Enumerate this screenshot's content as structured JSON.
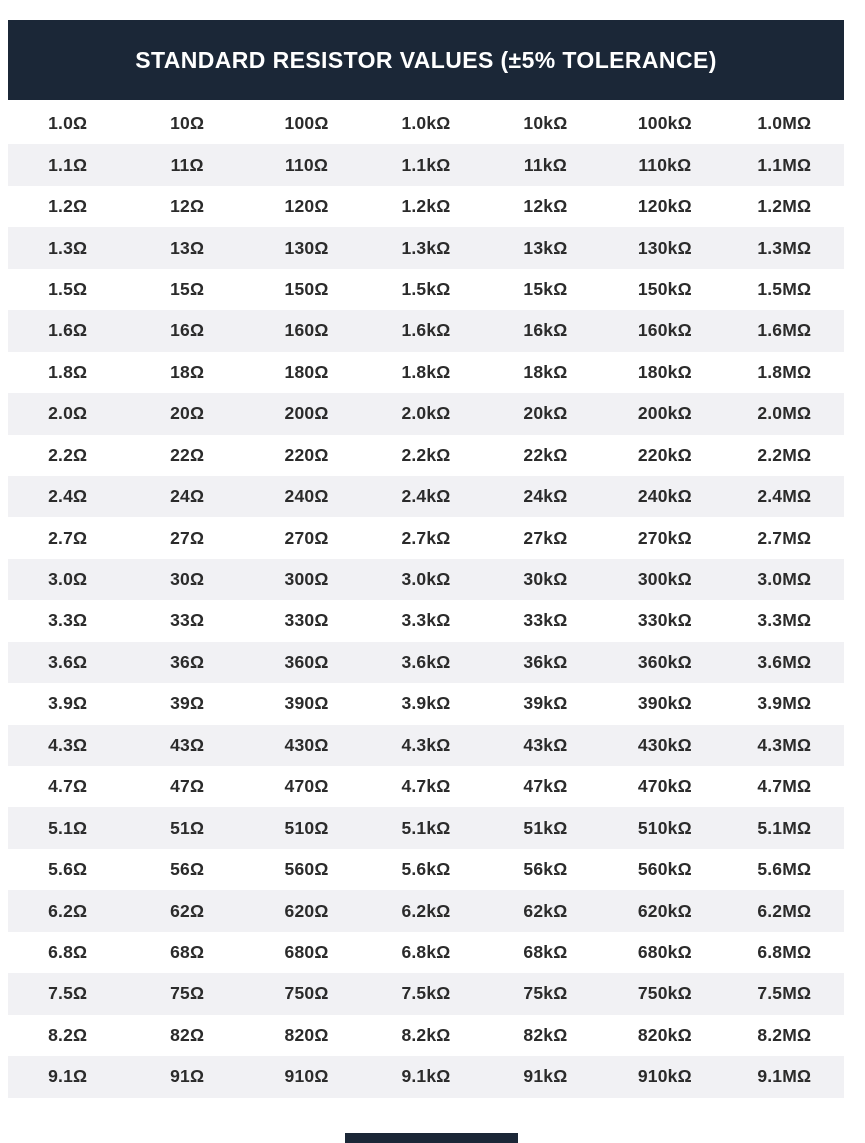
{
  "header": {
    "title": "STANDARD RESISTOR VALUES (±5% TOLERANCE)"
  },
  "colors": {
    "page_bg": "#ffffff",
    "header_bg": "#1b2737",
    "title_text": "#ffffff",
    "stripe": "#f1f1f4",
    "cell_text": "#2b2b2b"
  },
  "table": {
    "rows": [
      [
        "1.0Ω",
        "10Ω",
        "100Ω",
        "1.0kΩ",
        "10kΩ",
        "100kΩ",
        "1.0MΩ"
      ],
      [
        "1.1Ω",
        "11Ω",
        "110Ω",
        "1.1kΩ",
        "11kΩ",
        "110kΩ",
        "1.1MΩ"
      ],
      [
        "1.2Ω",
        "12Ω",
        "120Ω",
        "1.2kΩ",
        "12kΩ",
        "120kΩ",
        "1.2MΩ"
      ],
      [
        "1.3Ω",
        "13Ω",
        "130Ω",
        "1.3kΩ",
        "13kΩ",
        "130kΩ",
        "1.3MΩ"
      ],
      [
        "1.5Ω",
        "15Ω",
        "150Ω",
        "1.5kΩ",
        "15kΩ",
        "150kΩ",
        "1.5MΩ"
      ],
      [
        "1.6Ω",
        "16Ω",
        "160Ω",
        "1.6kΩ",
        "16kΩ",
        "160kΩ",
        "1.6MΩ"
      ],
      [
        "1.8Ω",
        "18Ω",
        "180Ω",
        "1.8kΩ",
        "18kΩ",
        "180kΩ",
        "1.8MΩ"
      ],
      [
        "2.0Ω",
        "20Ω",
        "200Ω",
        "2.0kΩ",
        "20kΩ",
        "200kΩ",
        "2.0MΩ"
      ],
      [
        "2.2Ω",
        "22Ω",
        "220Ω",
        "2.2kΩ",
        "22kΩ",
        "220kΩ",
        "2.2MΩ"
      ],
      [
        "2.4Ω",
        "24Ω",
        "240Ω",
        "2.4kΩ",
        "24kΩ",
        "240kΩ",
        "2.4MΩ"
      ],
      [
        "2.7Ω",
        "27Ω",
        "270Ω",
        "2.7kΩ",
        "27kΩ",
        "270kΩ",
        "2.7MΩ"
      ],
      [
        "3.0Ω",
        "30Ω",
        "300Ω",
        "3.0kΩ",
        "30kΩ",
        "300kΩ",
        "3.0MΩ"
      ],
      [
        "3.3Ω",
        "33Ω",
        "330Ω",
        "3.3kΩ",
        "33kΩ",
        "330kΩ",
        "3.3MΩ"
      ],
      [
        "3.6Ω",
        "36Ω",
        "360Ω",
        "3.6kΩ",
        "36kΩ",
        "360kΩ",
        "3.6MΩ"
      ],
      [
        "3.9Ω",
        "39Ω",
        "390Ω",
        "3.9kΩ",
        "39kΩ",
        "390kΩ",
        "3.9MΩ"
      ],
      [
        "4.3Ω",
        "43Ω",
        "430Ω",
        "4.3kΩ",
        "43kΩ",
        "430kΩ",
        "4.3MΩ"
      ],
      [
        "4.7Ω",
        "47Ω",
        "470Ω",
        "4.7kΩ",
        "47kΩ",
        "470kΩ",
        "4.7MΩ"
      ],
      [
        "5.1Ω",
        "51Ω",
        "510Ω",
        "5.1kΩ",
        "51kΩ",
        "510kΩ",
        "5.1MΩ"
      ],
      [
        "5.6Ω",
        "56Ω",
        "560Ω",
        "5.6kΩ",
        "56kΩ",
        "560kΩ",
        "5.6MΩ"
      ],
      [
        "6.2Ω",
        "62Ω",
        "620Ω",
        "6.2kΩ",
        "62kΩ",
        "620kΩ",
        "6.2MΩ"
      ],
      [
        "6.8Ω",
        "68Ω",
        "680Ω",
        "6.8kΩ",
        "68kΩ",
        "680kΩ",
        "6.8MΩ"
      ],
      [
        "7.5Ω",
        "75Ω",
        "750Ω",
        "7.5kΩ",
        "75kΩ",
        "750kΩ",
        "7.5MΩ"
      ],
      [
        "8.2Ω",
        "82Ω",
        "820Ω",
        "8.2kΩ",
        "82kΩ",
        "820kΩ",
        "8.2MΩ"
      ],
      [
        "9.1Ω",
        "91Ω",
        "910Ω",
        "9.1kΩ",
        "91kΩ",
        "910kΩ",
        "9.1MΩ"
      ]
    ]
  },
  "chart_data": {
    "type": "table",
    "title": "STANDARD RESISTOR VALUES (±5% TOLERANCE)",
    "description": "E24 series standard resistor base values repeated across seven decade multiplier columns",
    "base_values": [
      1.0,
      1.1,
      1.2,
      1.3,
      1.5,
      1.6,
      1.8,
      2.0,
      2.2,
      2.4,
      2.7,
      3.0,
      3.3,
      3.6,
      3.9,
      4.3,
      4.7,
      5.1,
      5.6,
      6.2,
      6.8,
      7.5,
      8.2,
      9.1
    ],
    "decade_multipliers": [
      "1 Ω",
      "10 Ω",
      "100 Ω",
      "1 kΩ",
      "10 kΩ",
      "100 kΩ",
      "1 MΩ"
    ],
    "tolerance": "±5%",
    "row_count": 24,
    "column_count": 7,
    "layout": {
      "column_headers_visible": false,
      "row_striping": "alternating white / light gray, first row white"
    }
  }
}
